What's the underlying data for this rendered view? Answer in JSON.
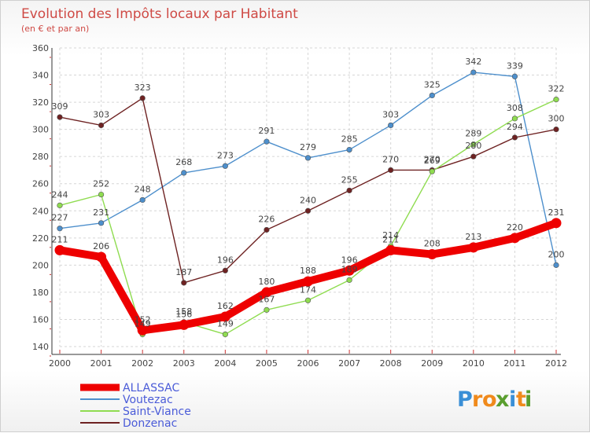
{
  "chart_data": {
    "type": "line",
    "title": "Evolution des Impôts locaux par Habitant",
    "subtitle": "(en € et par an)",
    "xlabel": "",
    "ylabel": "",
    "categories": [
      "2000",
      "2001",
      "2002",
      "2003",
      "2004",
      "2005",
      "2006",
      "2007",
      "2008",
      "2009",
      "2010",
      "2011",
      "2012"
    ],
    "ylim": [
      140,
      360
    ],
    "yticks": [
      140,
      160,
      180,
      200,
      220,
      240,
      260,
      280,
      300,
      320,
      340,
      360
    ],
    "grid": true,
    "legend": "bottom-left",
    "series": [
      {
        "name": "ALLASSAC",
        "color": "#ee0000",
        "values": [
          211,
          206,
          152,
          156,
          162,
          180,
          188,
          196,
          211,
          208,
          213,
          220,
          231
        ],
        "labels": [
          "211",
          "206",
          "152",
          "156",
          "162",
          "180",
          "188",
          "196",
          "211",
          "208",
          "213",
          "220",
          "231"
        ]
      },
      {
        "name": "Voutezac",
        "color": "#4d8fcc",
        "values": [
          227,
          231,
          248,
          268,
          273,
          291,
          279,
          285,
          303,
          325,
          342,
          339,
          200
        ],
        "labels": [
          "227",
          "231",
          "248",
          "268",
          "273",
          "291",
          "279",
          "285",
          "303",
          "325",
          "342",
          "339",
          "200"
        ]
      },
      {
        "name": "Saint-Viance",
        "color": "#8fdc50",
        "values": [
          244,
          252,
          149,
          158,
          149,
          167,
          174,
          189,
          214,
          269,
          289,
          308,
          322
        ],
        "labels": [
          "244",
          "252",
          "149",
          "158",
          "149",
          "167",
          "174",
          "189",
          "214",
          "269",
          "289",
          "308",
          "322"
        ]
      },
      {
        "name": "Donzenac",
        "color": "#6e2222",
        "values": [
          309,
          303,
          323,
          187,
          196,
          226,
          240,
          255,
          270,
          270,
          280,
          294,
          300
        ],
        "labels": [
          "309",
          "303",
          "323",
          "187",
          "196",
          "226",
          "240",
          "255",
          "270",
          "270",
          "280",
          "294",
          "300"
        ]
      }
    ]
  },
  "logo": {
    "letters": [
      "P",
      "r",
      "o",
      "x",
      "i",
      "t",
      "i"
    ],
    "colors": [
      "#3a8fd6",
      "#f08a1c",
      "#f08a1c",
      "#5a9e2e",
      "#3a8fd6",
      "#f08a1c",
      "#5a9e2e"
    ]
  }
}
